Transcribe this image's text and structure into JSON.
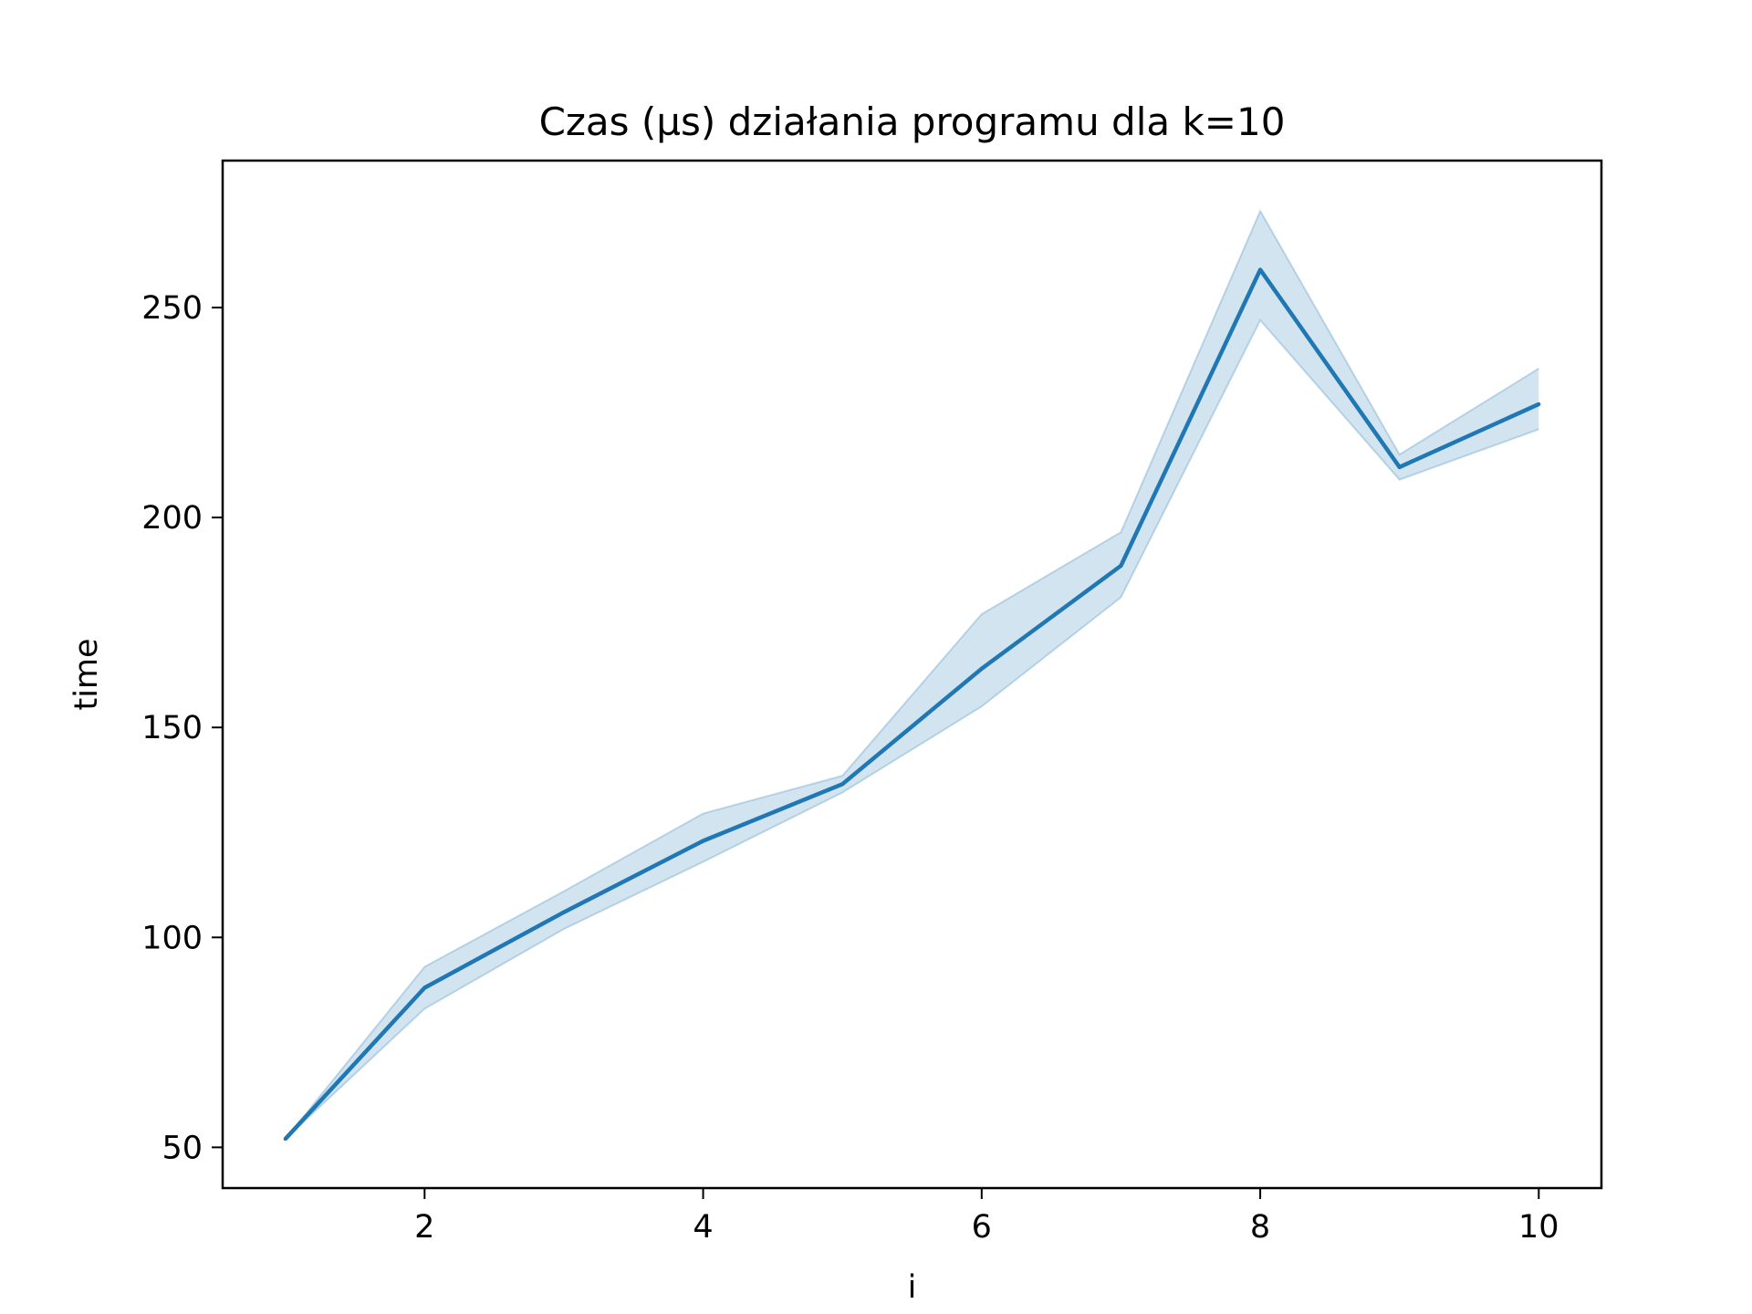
{
  "chart_data": {
    "type": "line",
    "title": "Czas (µs) działania programu dla k=10",
    "xlabel": "i",
    "ylabel": "time",
    "xlim": [
      0.55,
      10.45
    ],
    "ylim": [
      40.3,
      285
    ],
    "xticks": [
      2,
      4,
      6,
      8,
      10
    ],
    "yticks": [
      50,
      100,
      150,
      200,
      250
    ],
    "grid": false,
    "legend": "none",
    "colors": {
      "line": "#1f77b4",
      "band": "#1f77b4",
      "axes": "#000000",
      "background": "#ffffff"
    },
    "series": [
      {
        "x": [
          1,
          2,
          3,
          4,
          5,
          6,
          7,
          8,
          9,
          10
        ],
        "values": [
          52,
          88,
          106,
          123,
          136.5,
          164,
          188.5,
          259,
          212,
          227
        ],
        "ci_low": [
          52,
          83,
          102,
          118,
          134.5,
          155,
          181,
          247,
          209,
          221
        ],
        "ci_high": [
          52,
          93,
          111,
          129.5,
          138.5,
          177,
          196.5,
          273,
          215,
          235.5
        ]
      }
    ]
  }
}
